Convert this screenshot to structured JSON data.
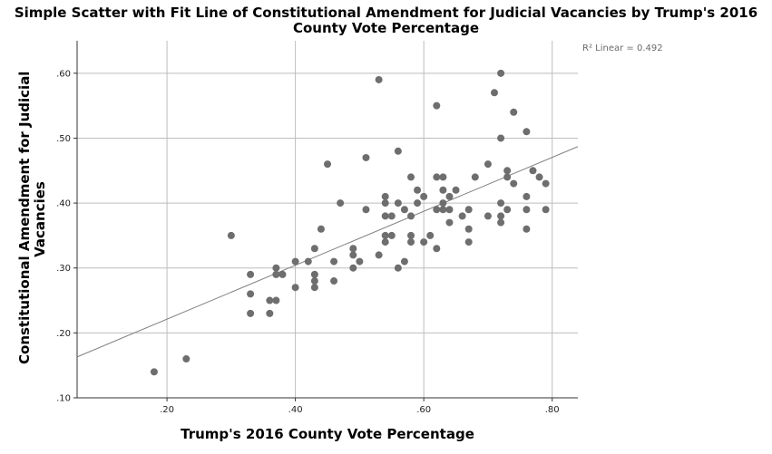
{
  "chart_data": {
    "type": "scatter",
    "title_lines": [
      "Simple Scatter with Fit Line of Constitutional Amendment for Judicial Vacancies by Trump's 2016",
      "County Vote Percentage"
    ],
    "xlabel": "Trump's 2016 County Vote Percentage",
    "ylabel_lines": [
      "Constitutional Amendment for Judicial",
      "Vacancies"
    ],
    "xlim": [
      0.06,
      0.84
    ],
    "ylim": [
      0.1,
      0.65
    ],
    "xticks": [
      0.2,
      0.4,
      0.6,
      0.8
    ],
    "xtick_labels": [
      ".20",
      ".40",
      ".60",
      ".80"
    ],
    "yticks": [
      0.1,
      0.2,
      0.3,
      0.4,
      0.5,
      0.6
    ],
    "ytick_labels": [
      ".10",
      ".20",
      ".30",
      ".40",
      ".50",
      ".60"
    ],
    "grid": true,
    "annotation": "R² Linear = 0.492",
    "fit_line": {
      "x": [
        0.06,
        0.84
      ],
      "y": [
        0.163,
        0.487
      ]
    },
    "point_color": "#6e6e6e",
    "line_color": "#7f7f7f",
    "grid_color": "#bdbdbd",
    "points": [
      {
        "x": 0.18,
        "y": 0.14
      },
      {
        "x": 0.23,
        "y": 0.16
      },
      {
        "x": 0.3,
        "y": 0.35
      },
      {
        "x": 0.33,
        "y": 0.29
      },
      {
        "x": 0.33,
        "y": 0.26
      },
      {
        "x": 0.33,
        "y": 0.23
      },
      {
        "x": 0.36,
        "y": 0.25
      },
      {
        "x": 0.36,
        "y": 0.23
      },
      {
        "x": 0.37,
        "y": 0.3
      },
      {
        "x": 0.37,
        "y": 0.29
      },
      {
        "x": 0.37,
        "y": 0.25
      },
      {
        "x": 0.38,
        "y": 0.29
      },
      {
        "x": 0.4,
        "y": 0.31
      },
      {
        "x": 0.4,
        "y": 0.27
      },
      {
        "x": 0.42,
        "y": 0.31
      },
      {
        "x": 0.43,
        "y": 0.33
      },
      {
        "x": 0.43,
        "y": 0.29
      },
      {
        "x": 0.43,
        "y": 0.28
      },
      {
        "x": 0.43,
        "y": 0.27
      },
      {
        "x": 0.44,
        "y": 0.36
      },
      {
        "x": 0.45,
        "y": 0.46
      },
      {
        "x": 0.46,
        "y": 0.31
      },
      {
        "x": 0.46,
        "y": 0.28
      },
      {
        "x": 0.47,
        "y": 0.4
      },
      {
        "x": 0.49,
        "y": 0.33
      },
      {
        "x": 0.49,
        "y": 0.32
      },
      {
        "x": 0.49,
        "y": 0.3
      },
      {
        "x": 0.5,
        "y": 0.31
      },
      {
        "x": 0.51,
        "y": 0.47
      },
      {
        "x": 0.51,
        "y": 0.39
      },
      {
        "x": 0.53,
        "y": 0.59
      },
      {
        "x": 0.53,
        "y": 0.32
      },
      {
        "x": 0.54,
        "y": 0.41
      },
      {
        "x": 0.54,
        "y": 0.4
      },
      {
        "x": 0.54,
        "y": 0.38
      },
      {
        "x": 0.54,
        "y": 0.35
      },
      {
        "x": 0.54,
        "y": 0.34
      },
      {
        "x": 0.55,
        "y": 0.38
      },
      {
        "x": 0.55,
        "y": 0.35
      },
      {
        "x": 0.56,
        "y": 0.48
      },
      {
        "x": 0.56,
        "y": 0.4
      },
      {
        "x": 0.56,
        "y": 0.3
      },
      {
        "x": 0.57,
        "y": 0.39
      },
      {
        "x": 0.57,
        "y": 0.31
      },
      {
        "x": 0.58,
        "y": 0.44
      },
      {
        "x": 0.58,
        "y": 0.38
      },
      {
        "x": 0.58,
        "y": 0.35
      },
      {
        "x": 0.58,
        "y": 0.34
      },
      {
        "x": 0.59,
        "y": 0.42
      },
      {
        "x": 0.59,
        "y": 0.4
      },
      {
        "x": 0.6,
        "y": 0.41
      },
      {
        "x": 0.6,
        "y": 0.34
      },
      {
        "x": 0.61,
        "y": 0.35
      },
      {
        "x": 0.62,
        "y": 0.55
      },
      {
        "x": 0.62,
        "y": 0.44
      },
      {
        "x": 0.62,
        "y": 0.39
      },
      {
        "x": 0.62,
        "y": 0.33
      },
      {
        "x": 0.63,
        "y": 0.44
      },
      {
        "x": 0.63,
        "y": 0.42
      },
      {
        "x": 0.63,
        "y": 0.4
      },
      {
        "x": 0.63,
        "y": 0.39
      },
      {
        "x": 0.64,
        "y": 0.41
      },
      {
        "x": 0.64,
        "y": 0.39
      },
      {
        "x": 0.64,
        "y": 0.37
      },
      {
        "x": 0.65,
        "y": 0.42
      },
      {
        "x": 0.66,
        "y": 0.38
      },
      {
        "x": 0.67,
        "y": 0.39
      },
      {
        "x": 0.67,
        "y": 0.36
      },
      {
        "x": 0.67,
        "y": 0.34
      },
      {
        "x": 0.68,
        "y": 0.44
      },
      {
        "x": 0.7,
        "y": 0.46
      },
      {
        "x": 0.7,
        "y": 0.38
      },
      {
        "x": 0.71,
        "y": 0.57
      },
      {
        "x": 0.72,
        "y": 0.6
      },
      {
        "x": 0.72,
        "y": 0.5
      },
      {
        "x": 0.72,
        "y": 0.4
      },
      {
        "x": 0.72,
        "y": 0.38
      },
      {
        "x": 0.72,
        "y": 0.37
      },
      {
        "x": 0.73,
        "y": 0.45
      },
      {
        "x": 0.73,
        "y": 0.44
      },
      {
        "x": 0.73,
        "y": 0.39
      },
      {
        "x": 0.74,
        "y": 0.54
      },
      {
        "x": 0.74,
        "y": 0.43
      },
      {
        "x": 0.76,
        "y": 0.51
      },
      {
        "x": 0.76,
        "y": 0.41
      },
      {
        "x": 0.76,
        "y": 0.39
      },
      {
        "x": 0.76,
        "y": 0.36
      },
      {
        "x": 0.77,
        "y": 0.45
      },
      {
        "x": 0.78,
        "y": 0.44
      },
      {
        "x": 0.79,
        "y": 0.43
      },
      {
        "x": 0.79,
        "y": 0.39
      }
    ]
  }
}
